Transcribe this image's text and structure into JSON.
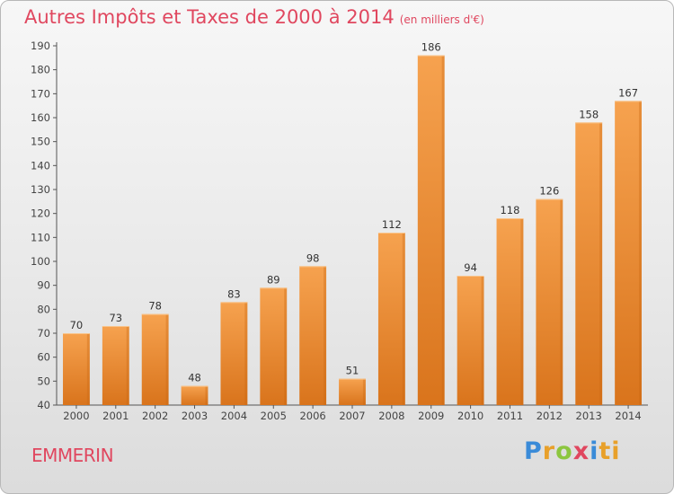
{
  "header": {
    "title": "Autres Impôts et Taxes de 2000 à 2014",
    "subtitle": "(en milliers d'€)"
  },
  "commune": "EMMERIN",
  "logo": {
    "letters": [
      "P",
      "r",
      "o",
      "x",
      "i",
      "ti"
    ]
  },
  "colors": {
    "title": "#e0475f",
    "bar_light": "#f6a24f",
    "bar_dark": "#e07a1f",
    "axis": "#555555"
  },
  "chart_data": {
    "type": "bar",
    "title": "Autres Impôts et Taxes de 2000 à 2014",
    "subtitle": "(en milliers d'€)",
    "xlabel": "",
    "ylabel": "",
    "ylim": [
      40,
      190
    ],
    "yticks": [
      40,
      50,
      60,
      70,
      80,
      90,
      100,
      110,
      120,
      130,
      140,
      150,
      160,
      170,
      180,
      190
    ],
    "grid": false,
    "categories": [
      "2000",
      "2001",
      "2002",
      "2003",
      "2004",
      "2005",
      "2006",
      "2007",
      "2008",
      "2009",
      "2010",
      "2011",
      "2012",
      "2013",
      "2014"
    ],
    "values": [
      70,
      73,
      78,
      48,
      83,
      89,
      98,
      51,
      112,
      186,
      94,
      118,
      126,
      158,
      167
    ]
  }
}
